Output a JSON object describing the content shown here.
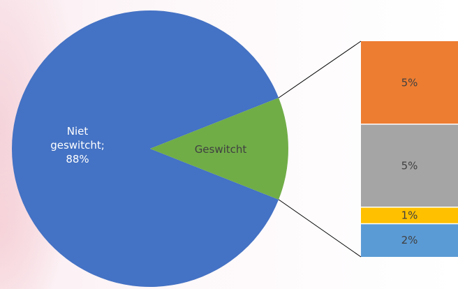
{
  "chart_data": {
    "type": "pie",
    "subtype": "pie-of-bar",
    "title": "",
    "main_slices": [
      {
        "name": "Niet geswitcht",
        "label_lines": [
          "Niet",
          "geswitcht;",
          "88%"
        ],
        "value": 88,
        "color": "#4472C4"
      },
      {
        "name": "Geswitcht",
        "label_lines": [
          "Geswitcht"
        ],
        "value": 12,
        "color": "#70AD47"
      }
    ],
    "breakdown": {
      "of": "Geswitcht",
      "segments": [
        {
          "label": "5%",
          "value": 5,
          "color": "#ED7D31"
        },
        {
          "label": "5%",
          "value": 5,
          "color": "#A5A5A5"
        },
        {
          "label": "1%",
          "value": 1,
          "color": "#FFC000"
        },
        {
          "label": "2%",
          "value": 2,
          "color": "#5B9BD5"
        }
      ]
    },
    "legend": "none",
    "grid": false
  }
}
